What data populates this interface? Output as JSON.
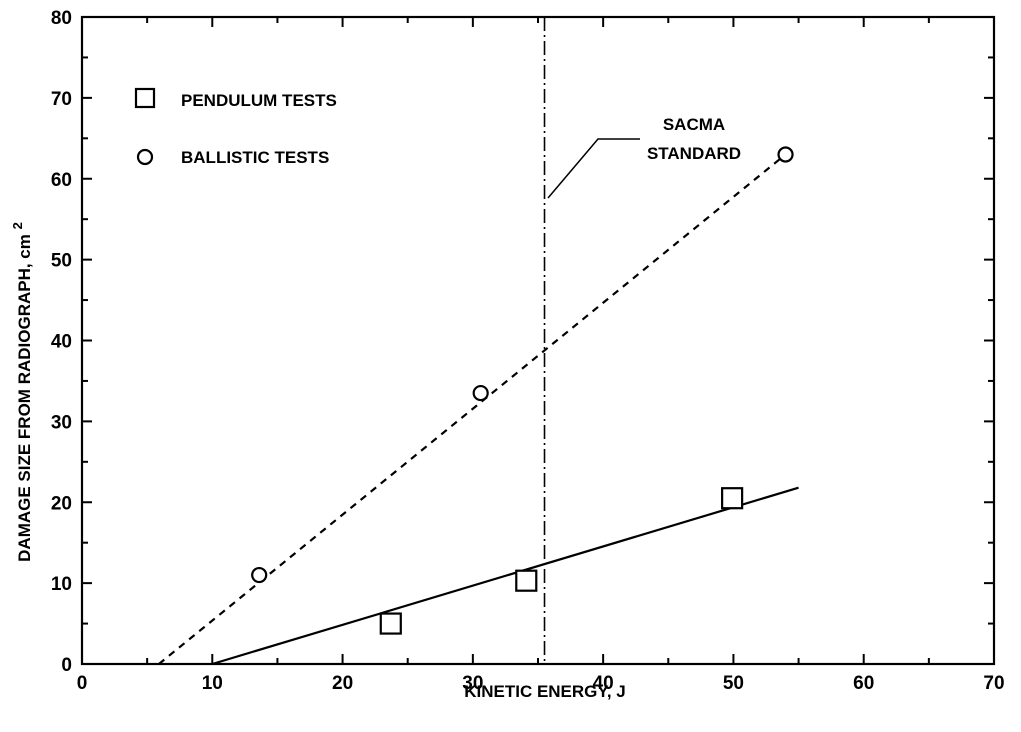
{
  "chart_data": {
    "type": "scatter",
    "xlabel": "KINETIC ENERGY, J",
    "ylabel": "DAMAGE SIZE FROM RADIOGRAPH, cm",
    "ylabel_superscript": "2",
    "xlim": [
      0,
      70
    ],
    "ylim": [
      0,
      80
    ],
    "xticks": [
      0,
      10,
      20,
      30,
      40,
      50,
      60,
      70
    ],
    "yticks": [
      0,
      10,
      20,
      30,
      40,
      50,
      60,
      70,
      80
    ],
    "grid": false,
    "legend_position": "top-left",
    "series": [
      {
        "name": "PENDULUM TESTS",
        "marker": "square",
        "points": [
          {
            "x": 23.7,
            "y": 5.0
          },
          {
            "x": 34.1,
            "y": 10.3
          },
          {
            "x": 49.9,
            "y": 20.5
          }
        ],
        "fit_line": {
          "style": "solid",
          "x": [
            10,
            55
          ],
          "y": [
            0,
            21.8
          ]
        }
      },
      {
        "name": "BALLISTIC TESTS",
        "marker": "circle",
        "points": [
          {
            "x": 13.6,
            "y": 11.0
          },
          {
            "x": 30.6,
            "y": 33.5
          },
          {
            "x": 54.0,
            "y": 63.0
          }
        ],
        "fit_line": {
          "style": "dashed",
          "x": [
            5.9,
            54.0
          ],
          "y": [
            0,
            63.0
          ]
        }
      }
    ],
    "reference_line": {
      "x": 35.5,
      "style": "dash-dot",
      "label_lines": [
        "SACMA",
        "STANDARD"
      ]
    }
  }
}
